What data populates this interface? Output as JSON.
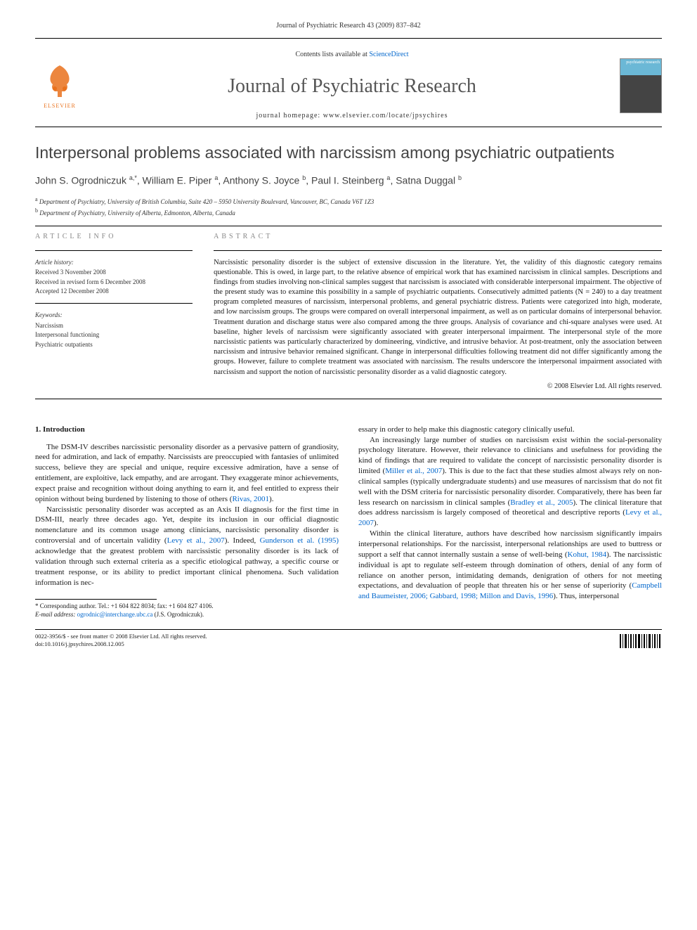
{
  "running_header": "Journal of Psychiatric Research 43 (2009) 837–842",
  "masthead": {
    "contents_prefix": "Contents lists available at ",
    "contents_link": "ScienceDirect",
    "journal_name": "Journal of Psychiatric Research",
    "homepage_prefix": "journal homepage: ",
    "homepage_url": "www.elsevier.com/locate/jpsychires",
    "elsevier_label": "ELSEVIER",
    "cover_label": "psychiatric research"
  },
  "title": "Interpersonal problems associated with narcissism among psychiatric outpatients",
  "authors_html": "John S. Ogrodniczuk <sup>a,*</sup>, William E. Piper <sup>a</sup>, Anthony S. Joyce <sup>b</sup>, Paul I. Steinberg <sup>a</sup>, Satna Duggal <sup>b</sup>",
  "affiliations": {
    "a": "Department of Psychiatry, University of British Columbia, Suite 420 – 5950 University Boulevard, Vancouver, BC, Canada V6T 1Z3",
    "b": "Department of Psychiatry, University of Alberta, Edmonton, Alberta, Canada"
  },
  "article_info": {
    "heading": "ARTICLE INFO",
    "history_label": "Article history:",
    "received": "Received 3 November 2008",
    "revised": "Received in revised form 6 December 2008",
    "accepted": "Accepted 12 December 2008",
    "keywords_label": "Keywords:",
    "keywords": [
      "Narcissism",
      "Interpersonal functioning",
      "Psychiatric outpatients"
    ]
  },
  "abstract": {
    "heading": "ABSTRACT",
    "text": "Narcissistic personality disorder is the subject of extensive discussion in the literature. Yet, the validity of this diagnostic category remains questionable. This is owed, in large part, to the relative absence of empirical work that has examined narcissism in clinical samples. Descriptions and findings from studies involving non-clinical samples suggest that narcissism is associated with considerable interpersonal impairment. The objective of the present study was to examine this possibility in a sample of psychiatric outpatients. Consecutively admitted patients (N = 240) to a day treatment program completed measures of narcissism, interpersonal problems, and general psychiatric distress. Patients were categorized into high, moderate, and low narcissism groups. The groups were compared on overall interpersonal impairment, as well as on particular domains of interpersonal behavior. Treatment duration and discharge status were also compared among the three groups. Analysis of covariance and chi-square analyses were used. At baseline, higher levels of narcissism were significantly associated with greater interpersonal impairment. The interpersonal style of the more narcissistic patients was particularly characterized by domineering, vindictive, and intrusive behavior. At post-treatment, only the association between narcissism and intrusive behavior remained significant. Change in interpersonal difficulties following treatment did not differ significantly among the groups. However, failure to complete treatment was associated with narcissism. The results underscore the interpersonal impairment associated with narcissism and support the notion of narcissistic personality disorder as a valid diagnostic category.",
    "copyright": "© 2008 Elsevier Ltd. All rights reserved."
  },
  "section1": {
    "heading": "1. Introduction",
    "p1": "The DSM-IV describes narcissistic personality disorder as a pervasive pattern of grandiosity, need for admiration, and lack of empathy. Narcissists are preoccupied with fantasies of unlimited success, believe they are special and unique, require excessive admiration, have a sense of entitlement, are exploitive, lack empathy, and are arrogant. They exaggerate minor achievements, expect praise and recognition without doing anything to earn it, and feel entitled to express their opinion without being burdened by listening to those of others (",
    "p1_ref": "Rivas, 2001",
    "p1_end": ").",
    "p2a": "Narcissistic personality disorder was accepted as an Axis II diagnosis for the first time in DSM-III, nearly three decades ago. Yet, despite its inclusion in our official diagnostic nomenclature and its common usage among clinicians, narcissistic personality disorder is controversial and of uncertain validity (",
    "p2_ref1": "Levy et al., 2007",
    "p2b": "). Indeed, ",
    "p2_ref2": "Gunderson et al. (1995)",
    "p2c": " acknowledge that the greatest problem with narcissistic personality disorder is its lack of validation through such external criteria as a specific etiological pathway, a specific course or treatment response, or its ability to predict important clinical phenomena. Such validation information is nec-",
    "p3": "essary in order to help make this diagnostic category clinically useful.",
    "p4a": "An increasingly large number of studies on narcissism exist within the social-personality psychology literature. However, their relevance to clinicians and usefulness for providing the kind of findings that are required to validate the concept of narcissistic personality disorder is limited (",
    "p4_ref1": "Miller et al., 2007",
    "p4b": "). This is due to the fact that these studies almost always rely on non-clinical samples (typically undergraduate students) and use measures of narcissism that do not fit well with the DSM criteria for narcissistic personality disorder. Comparatively, there has been far less research on narcissism in clinical samples (",
    "p4_ref2": "Bradley et al., 2005",
    "p4c": "). The clinical literature that does address narcissism is largely composed of theoretical and descriptive reports (",
    "p4_ref3": "Levy et al., 2007",
    "p4d": ").",
    "p5a": "Within the clinical literature, authors have described how narcissism significantly impairs interpersonal relationships. For the narcissist, interpersonal relationships are used to buttress or support a self that cannot internally sustain a sense of well-being (",
    "p5_ref1": "Kohut, 1984",
    "p5b": "). The narcissistic individual is apt to regulate self-esteem through domination of others, denial of any form of reliance on another person, intimidating demands, denigration of others for not meeting expectations, and devaluation of people that threaten his or her sense of superiority (",
    "p5_ref2": "Campbell and Baumeister, 2006; Gabbard, 1998; Millon and Davis, 1996",
    "p5c": "). Thus, interpersonal"
  },
  "footnote": {
    "corr": "* Corresponding author. Tel.: +1 604 822 8034; fax: +1 604 827 4106.",
    "email_label": "E-mail address:",
    "email": "ogrodnic@interchange.ubc.ca",
    "email_who": "(J.S. Ogrodniczuk)."
  },
  "footer": {
    "issn": "0022-3956/$ - see front matter © 2008 Elsevier Ltd. All rights reserved.",
    "doi": "doi:10.1016/j.jpsychires.2008.12.005"
  },
  "colors": {
    "link": "#0066cc",
    "elsevier_orange": "#e9711c",
    "heading_gray": "#888888",
    "title_gray": "#434343"
  }
}
